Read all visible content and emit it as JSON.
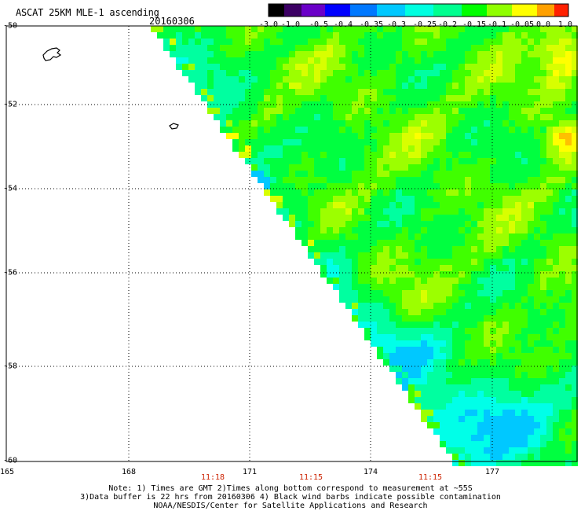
{
  "header": {
    "title": "ASCAT 25KM MLE-1 ascending",
    "date": "20160306"
  },
  "colorbar": {
    "tick_labels": [
      "-3.0",
      "-1.0",
      "-0.5",
      "-0.4",
      "-0.35",
      "-0.3",
      "-0.25",
      "-0.2",
      "-0.15",
      "-0.1",
      "-0.05",
      "0.0",
      "1.0"
    ],
    "colors": [
      "#000000",
      "#3c0064",
      "#6a00c8",
      "#0000ff",
      "#0078ff",
      "#00c8ff",
      "#00ffe0",
      "#00ff90",
      "#00ff00",
      "#90ff00",
      "#ffff00",
      "#ffa000",
      "#ff2000"
    ]
  },
  "axes": {
    "lat_labels": [
      "-50",
      "-52",
      "-54",
      "-56",
      "-58",
      "-60"
    ],
    "lon_labels": [
      "165",
      "168",
      "171",
      "174",
      "177"
    ],
    "time_labels": [
      "11:18",
      "11:15",
      "11:15"
    ],
    "time_color": "#cc2200"
  },
  "notes": {
    "line1": "Note: 1) Times are GMT 2)Times along bottom correspond to measurement at ~55S",
    "line2": "3)Data buffer is 22 hrs from 20160306 4) Black wind barbs indicate possible contamination",
    "line3": "NOAA/NESDIS/Center for Satellite Applications and Research"
  }
}
